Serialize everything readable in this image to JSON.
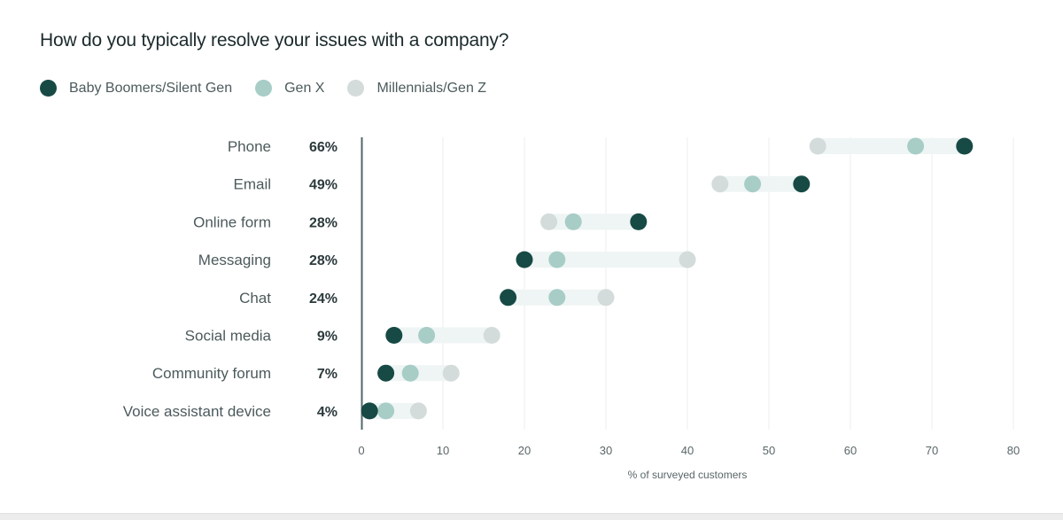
{
  "chart_data": {
    "type": "scatter",
    "subtype": "dumbbell",
    "title": "How do you typically resolve your issues with a company?",
    "xlabel": "% of surveyed customers",
    "ylabel": "",
    "xlim": [
      0,
      80
    ],
    "xticks": [
      0,
      10,
      20,
      30,
      40,
      50,
      60,
      70,
      80
    ],
    "grid": true,
    "legend_position": "top-left",
    "categories": [
      "Phone",
      "Email",
      "Online form",
      "Messaging",
      "Chat",
      "Social media",
      "Community forum",
      "Voice assistant device"
    ],
    "totals": [
      "66%",
      "49%",
      "28%",
      "28%",
      "24%",
      "9%",
      "7%",
      "4%"
    ],
    "series": [
      {
        "name": "Baby Boomers/Silent Gen",
        "color": "#174a44",
        "values": [
          74,
          54,
          34,
          20,
          18,
          4,
          3,
          1
        ]
      },
      {
        "name": "Gen X",
        "color": "#a7cdc6",
        "values": [
          68,
          48,
          26,
          24,
          24,
          8,
          6,
          3
        ]
      },
      {
        "name": "Millennials/Gen Z",
        "color": "#d3dcdb",
        "values": [
          56,
          44,
          23,
          40,
          30,
          16,
          11,
          7
        ]
      }
    ]
  }
}
